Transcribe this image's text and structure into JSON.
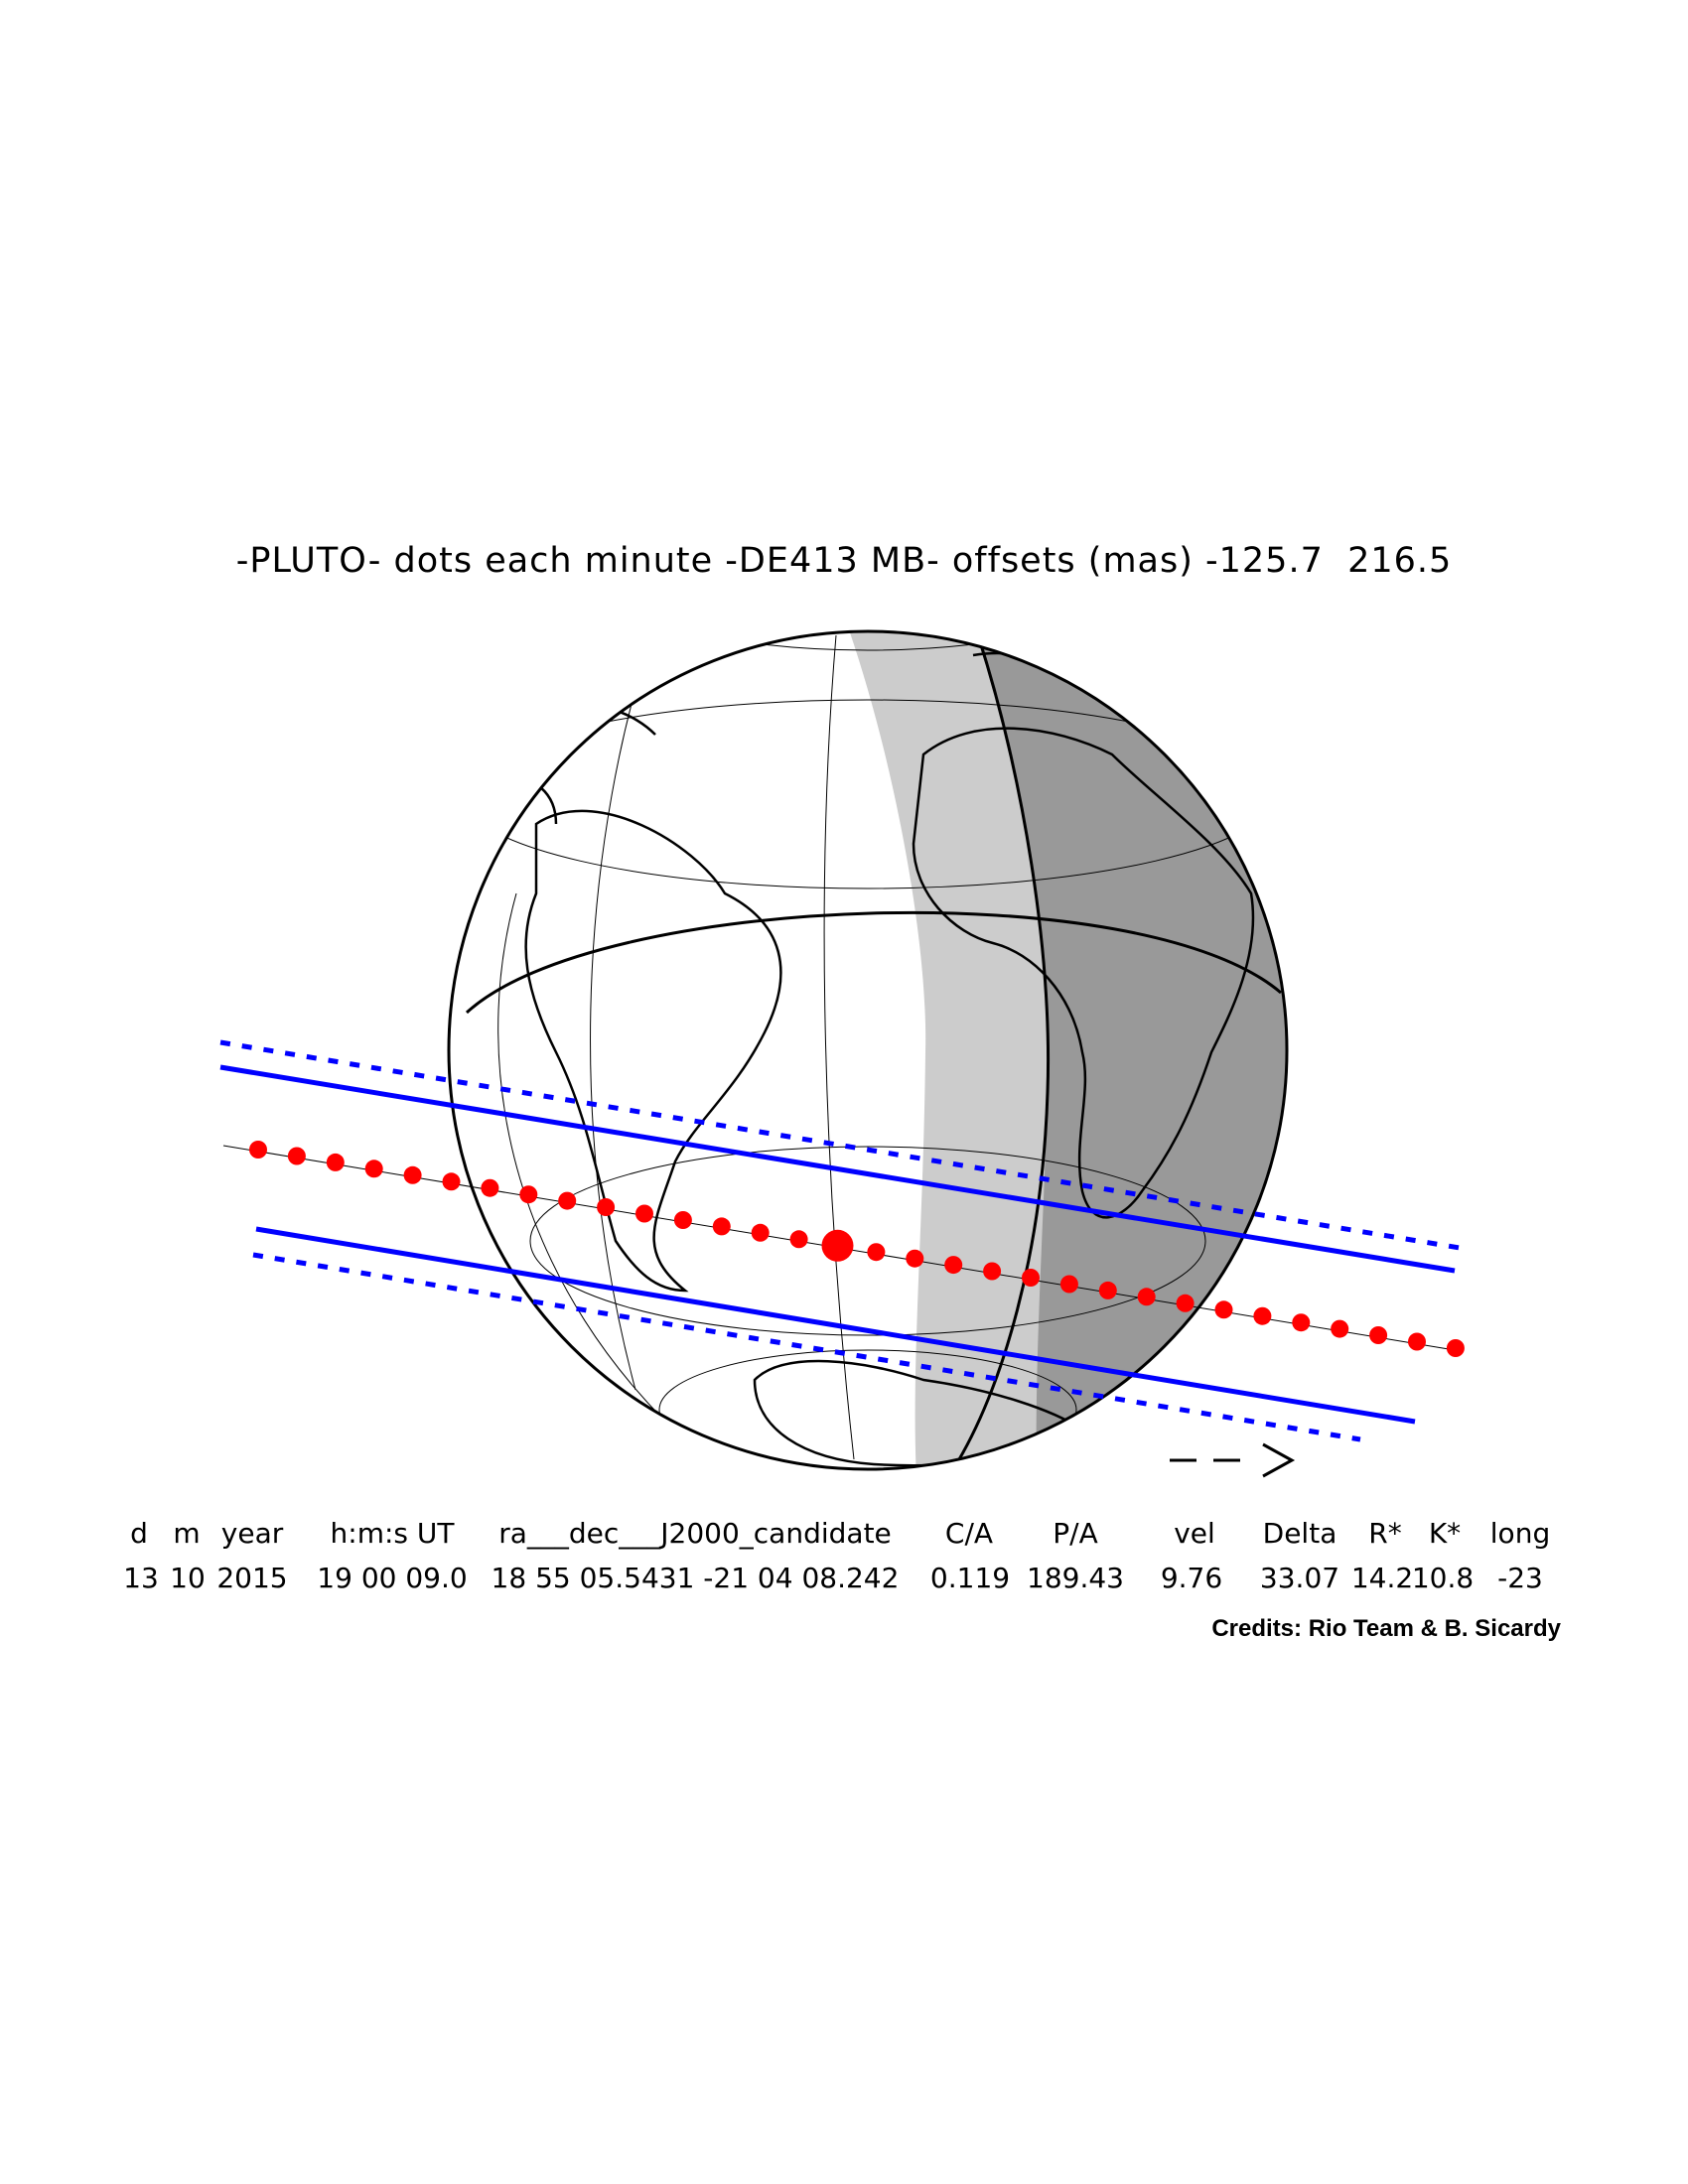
{
  "title": "-PLUTO- dots each minute -DE413 MB- offsets (mas) -125.7  216.5",
  "arrow_label": "-- >",
  "table": {
    "headers": [
      "d",
      "m",
      "year",
      "h:m:s UT",
      "ra___dec___J2000_candidate",
      "C/A",
      "P/A",
      "vel",
      "Delta",
      "R*",
      "K*",
      "long"
    ],
    "values": [
      "13",
      "10",
      "2015",
      "19 00 09.0",
      "18 55 05.5431 -21 04 08.242",
      "0.119",
      "189.43",
      "9.76",
      "33.07",
      "14.2",
      "10.8",
      "-23"
    ]
  },
  "credits": "Credits: Rio Team & B. Sicardy",
  "colors": {
    "shadow_path": "#0000ff",
    "centerline_dots": "#ff0000",
    "twilight": "#cccccc",
    "night": "#999999"
  }
}
